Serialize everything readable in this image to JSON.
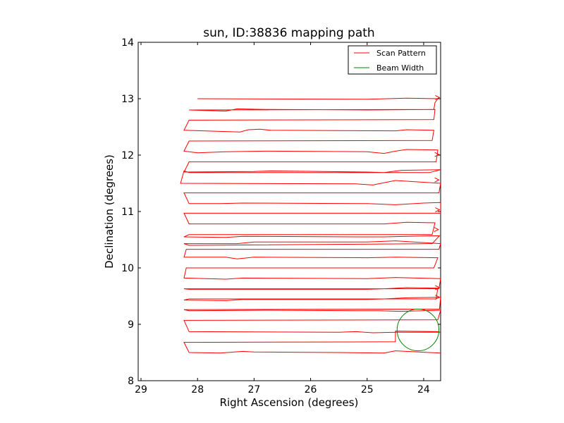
{
  "chart_data": {
    "type": "line",
    "title": "sun, ID:38836 mapping path",
    "xlabel": "Right Ascension (degrees)",
    "ylabel": "Declination (degrees)",
    "xlim": [
      29.05,
      23.7
    ],
    "ylim": [
      8,
      14
    ],
    "x_inverted": true,
    "xticks": [
      29,
      28,
      27,
      26,
      25,
      24
    ],
    "yticks": [
      8,
      9,
      10,
      11,
      12,
      13,
      14
    ],
    "grid": false,
    "legend_position": "top-right",
    "legend": [
      {
        "label": "Scan Pattern",
        "color": "#ff0000"
      },
      {
        "label": "Beam Width",
        "color": "#008000"
      }
    ],
    "series": [
      {
        "name": "Scan Pattern",
        "color": "#ff0000",
        "points": [
          [
            28.0,
            13.0
          ],
          [
            25.0,
            12.99
          ],
          [
            24.3,
            13.01
          ],
          [
            23.75,
            13.0
          ],
          [
            23.8,
            12.93
          ],
          [
            23.82,
            12.81
          ],
          [
            28.15,
            12.8
          ],
          [
            27.5,
            12.78
          ],
          [
            27.3,
            12.82
          ],
          [
            26.8,
            12.81
          ],
          [
            25.0,
            12.8
          ],
          [
            23.8,
            12.81
          ],
          [
            23.82,
            12.63
          ],
          [
            28.15,
            12.62
          ],
          [
            28.24,
            12.44
          ],
          [
            27.25,
            12.41
          ],
          [
            27.1,
            12.45
          ],
          [
            26.9,
            12.46
          ],
          [
            26.7,
            12.44
          ],
          [
            24.5,
            12.43
          ],
          [
            24.3,
            12.45
          ],
          [
            23.82,
            12.44
          ],
          [
            23.85,
            12.26
          ],
          [
            28.15,
            12.25
          ],
          [
            28.24,
            12.07
          ],
          [
            28.0,
            12.04
          ],
          [
            27.5,
            12.06
          ],
          [
            26.8,
            12.07
          ],
          [
            25.0,
            12.06
          ],
          [
            24.7,
            12.03
          ],
          [
            24.5,
            12.07
          ],
          [
            24.3,
            12.1
          ],
          [
            23.75,
            12.09
          ],
          [
            23.78,
            11.88
          ],
          [
            28.15,
            11.88
          ],
          [
            28.24,
            11.7
          ],
          [
            27.0,
            11.71
          ],
          [
            26.7,
            11.72
          ],
          [
            25.0,
            11.7
          ],
          [
            24.7,
            11.69
          ],
          [
            24.4,
            11.73
          ],
          [
            23.7,
            11.74
          ],
          [
            23.9,
            11.69
          ],
          [
            28.15,
            11.69
          ],
          [
            28.24,
            11.72
          ],
          [
            28.3,
            11.5
          ],
          [
            25.2,
            11.49
          ],
          [
            24.9,
            11.47
          ],
          [
            24.5,
            11.55
          ],
          [
            23.7,
            11.5
          ],
          [
            23.73,
            11.33
          ],
          [
            28.24,
            11.33
          ],
          [
            28.15,
            11.14
          ],
          [
            27.6,
            11.14
          ],
          [
            27.2,
            11.15
          ],
          [
            25.0,
            11.14
          ],
          [
            24.5,
            11.12
          ],
          [
            24.0,
            11.15
          ],
          [
            23.7,
            11.16
          ],
          [
            23.7,
            10.97
          ],
          [
            28.24,
            10.97
          ],
          [
            28.15,
            10.78
          ],
          [
            25.0,
            10.78
          ],
          [
            24.7,
            10.78
          ],
          [
            24.3,
            10.81
          ],
          [
            23.8,
            10.8
          ],
          [
            23.85,
            10.59
          ],
          [
            28.15,
            10.59
          ],
          [
            28.24,
            10.55
          ],
          [
            27.5,
            10.54
          ],
          [
            27.2,
            10.56
          ],
          [
            25.0,
            10.55
          ],
          [
            24.7,
            10.55
          ],
          [
            24.3,
            10.56
          ],
          [
            23.72,
            10.57
          ],
          [
            23.85,
            10.43
          ],
          [
            28.15,
            10.4
          ],
          [
            28.24,
            10.43
          ],
          [
            27.3,
            10.43
          ],
          [
            27.0,
            10.46
          ],
          [
            25.0,
            10.46
          ],
          [
            24.5,
            10.48
          ],
          [
            23.7,
            10.43
          ],
          [
            23.73,
            10.33
          ],
          [
            28.2,
            10.33
          ],
          [
            28.24,
            10.19
          ],
          [
            27.5,
            10.19
          ],
          [
            27.3,
            10.16
          ],
          [
            27.0,
            10.19
          ],
          [
            25.0,
            10.18
          ],
          [
            24.5,
            10.19
          ],
          [
            23.75,
            10.18
          ],
          [
            23.82,
            10.0
          ],
          [
            28.2,
            10.0
          ],
          [
            28.24,
            9.82
          ],
          [
            27.5,
            9.8
          ],
          [
            27.2,
            9.82
          ],
          [
            25.0,
            9.81
          ],
          [
            24.5,
            9.83
          ],
          [
            23.7,
            9.81
          ],
          [
            23.73,
            9.63
          ],
          [
            28.24,
            9.63
          ],
          [
            28.15,
            9.62
          ],
          [
            25.0,
            9.62
          ],
          [
            24.7,
            9.63
          ],
          [
            24.3,
            9.65
          ],
          [
            23.75,
            9.64
          ],
          [
            23.78,
            9.45
          ],
          [
            28.15,
            9.45
          ],
          [
            28.24,
            9.43
          ],
          [
            27.5,
            9.42
          ],
          [
            27.2,
            9.44
          ],
          [
            25.0,
            9.44
          ],
          [
            24.7,
            9.45
          ],
          [
            24.3,
            9.47
          ],
          [
            23.7,
            9.48
          ],
          [
            23.72,
            9.27
          ],
          [
            28.24,
            9.26
          ],
          [
            28.15,
            9.24
          ],
          [
            26.8,
            9.25
          ],
          [
            25.0,
            9.24
          ],
          [
            24.8,
            9.24
          ],
          [
            24.4,
            9.23
          ],
          [
            23.7,
            9.25
          ],
          [
            23.75,
            9.08
          ],
          [
            28.24,
            9.07
          ],
          [
            28.15,
            8.87
          ],
          [
            25.5,
            8.86
          ],
          [
            25.2,
            8.87
          ],
          [
            24.9,
            8.85
          ],
          [
            24.5,
            8.86
          ],
          [
            23.7,
            8.86
          ],
          [
            23.75,
            8.87
          ],
          [
            24.5,
            8.88
          ],
          [
            24.5,
            8.69
          ],
          [
            28.24,
            8.68
          ],
          [
            28.15,
            8.5
          ],
          [
            27.6,
            8.49
          ],
          [
            27.2,
            8.52
          ],
          [
            27.0,
            8.51
          ],
          [
            25.5,
            8.5
          ],
          [
            24.7,
            8.49
          ],
          [
            24.5,
            8.53
          ],
          [
            23.7,
            8.49
          ]
        ],
        "arrows": [
          [
            23.72,
            13.02
          ],
          [
            23.73,
            12.01
          ],
          [
            23.73,
            11.56
          ],
          [
            23.72,
            11.03
          ],
          [
            23.74,
            10.68
          ],
          [
            23.72,
            9.65
          ],
          [
            23.72,
            9.48
          ]
        ]
      }
    ],
    "beam_width": {
      "center": [
        24.1,
        8.9
      ],
      "radius_degrees": 0.37,
      "color": "#008000"
    }
  }
}
